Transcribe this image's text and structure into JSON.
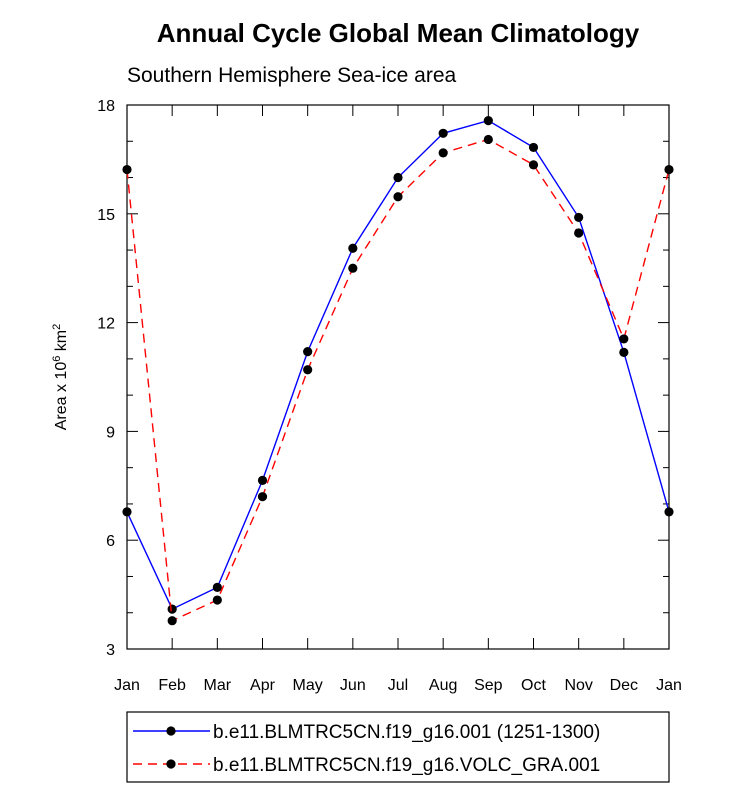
{
  "chart_data": {
    "type": "line",
    "title": "Annual Cycle Global Mean Climatology",
    "subtitle": "Southern Hemisphere Sea-ice area",
    "ylabel_prefix": "Area x 10",
    "ylabel_exp": "6",
    "ylabel_unit": " km",
    "ylabel_unit_exp": "2",
    "categories": [
      "Jan",
      "Feb",
      "Mar",
      "Apr",
      "May",
      "Jun",
      "Jul",
      "Aug",
      "Sep",
      "Oct",
      "Nov",
      "Dec",
      "Jan"
    ],
    "ylim": [
      3,
      18
    ],
    "yticks": [
      3,
      6,
      9,
      12,
      15,
      18
    ],
    "grid": false,
    "legend_position": "bottom",
    "series": [
      {
        "name": "b.e11.BLMTRC5CN.f19_g16.001 (1251-1300)",
        "color": "#0000ff",
        "dash": "solid",
        "values": [
          6.78,
          4.1,
          4.7,
          7.65,
          11.2,
          14.05,
          16.0,
          17.22,
          17.57,
          16.83,
          14.9,
          11.18,
          6.78
        ]
      },
      {
        "name": "b.e11.BLMTRC5CN.f19_g16.VOLC_GRA.001",
        "color": "#ff0000",
        "dash": "dashed",
        "values": [
          16.22,
          3.78,
          4.35,
          7.2,
          10.7,
          13.5,
          15.47,
          16.68,
          17.05,
          16.35,
          14.47,
          11.55,
          16.22
        ]
      }
    ]
  }
}
